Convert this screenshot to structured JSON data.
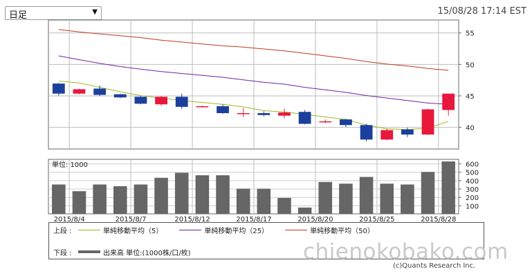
{
  "toolbar": {
    "period_selected": "日足",
    "timestamp": "15/08/28 17:14 EST"
  },
  "chart_data": [
    {
      "type": "candlestick",
      "x_tick_labels": [
        "2015/8/4",
        "2015/8/7",
        "2015/8/12",
        "2015/8/17",
        "2015/8/20",
        "2015/8/25",
        "2015/8/28"
      ],
      "ylim": [
        36.5,
        57
      ],
      "yticks": [
        40,
        45,
        50,
        55
      ],
      "grid": true,
      "colors": {
        "up": "#e8173c",
        "down": "#1b3f9c",
        "ma5": "#9abb1c",
        "ma25": "#6a22a8",
        "ma50": "#c0391a"
      },
      "candles": [
        {
          "date": "2015/8/3",
          "open": 46.9,
          "high": 47.0,
          "low": 45.0,
          "close": 45.3
        },
        {
          "date": "2015/8/4",
          "open": 45.3,
          "high": 46.1,
          "low": 45.2,
          "close": 46.0
        },
        {
          "date": "2015/8/5",
          "open": 46.1,
          "high": 46.6,
          "low": 44.9,
          "close": 45.1
        },
        {
          "date": "2015/8/6",
          "open": 45.2,
          "high": 45.3,
          "low": 44.6,
          "close": 44.7
        },
        {
          "date": "2015/8/7",
          "open": 44.8,
          "high": 44.9,
          "low": 43.6,
          "close": 43.7
        },
        {
          "date": "2015/8/10",
          "open": 43.6,
          "high": 44.9,
          "low": 43.4,
          "close": 44.8
        },
        {
          "date": "2015/8/11",
          "open": 44.8,
          "high": 45.3,
          "low": 42.9,
          "close": 43.2
        },
        {
          "date": "2015/8/12",
          "open": 43.2,
          "high": 43.4,
          "low": 43.1,
          "close": 43.3
        },
        {
          "date": "2015/8/13",
          "open": 43.3,
          "high": 43.6,
          "low": 42.1,
          "close": 42.2
        },
        {
          "date": "2015/8/14",
          "open": 42.2,
          "high": 43.0,
          "low": 41.6,
          "close": 42.2
        },
        {
          "date": "2015/8/17",
          "open": 42.2,
          "high": 42.5,
          "low": 41.7,
          "close": 41.9
        },
        {
          "date": "2015/8/18",
          "open": 41.8,
          "high": 42.9,
          "low": 41.4,
          "close": 42.3
        },
        {
          "date": "2015/8/19",
          "open": 42.4,
          "high": 42.7,
          "low": 40.4,
          "close": 40.5
        },
        {
          "date": "2015/8/20",
          "open": 40.9,
          "high": 41.2,
          "low": 40.6,
          "close": 40.9
        },
        {
          "date": "2015/8/21",
          "open": 41.2,
          "high": 41.3,
          "low": 40.0,
          "close": 40.3
        },
        {
          "date": "2015/8/24",
          "open": 40.3,
          "high": 40.5,
          "low": 37.7,
          "close": 38.0
        },
        {
          "date": "2015/8/25",
          "open": 38.0,
          "high": 39.7,
          "low": 37.9,
          "close": 39.5
        },
        {
          "date": "2015/8/26",
          "open": 39.6,
          "high": 39.9,
          "low": 38.4,
          "close": 38.8
        },
        {
          "date": "2015/8/27",
          "open": 38.8,
          "high": 42.9,
          "low": 38.7,
          "close": 42.8
        },
        {
          "date": "2015/8/28",
          "open": 42.7,
          "high": 45.3,
          "low": 41.8,
          "close": 45.3
        }
      ],
      "series": [
        {
          "name": "単純移動平均（5）",
          "values": [
            47.3,
            47.0,
            46.3,
            45.6,
            45.0,
            44.6,
            44.2,
            43.9,
            43.6,
            43.2,
            42.6,
            42.4,
            42.0,
            41.6,
            41.2,
            40.3,
            39.7,
            39.6,
            39.8,
            40.9
          ]
        },
        {
          "name": "単純移動平均（25）",
          "values": [
            51.3,
            50.7,
            50.1,
            49.6,
            49.2,
            48.8,
            48.5,
            48.2,
            47.9,
            47.5,
            47.1,
            46.8,
            46.3,
            45.9,
            45.5,
            45.0,
            44.6,
            44.2,
            43.8,
            43.6
          ]
        },
        {
          "name": "単純移動平均（50）",
          "values": [
            55.5,
            55.1,
            54.8,
            54.5,
            54.2,
            53.8,
            53.5,
            53.2,
            52.9,
            52.7,
            52.4,
            52.1,
            51.7,
            51.3,
            50.9,
            50.4,
            50.0,
            49.7,
            49.3,
            49.0
          ]
        }
      ]
    },
    {
      "type": "bar",
      "unit_label": "単位: 1000",
      "name": "出来高 単位:(1000株/口/枚)",
      "ylim": [
        0,
        650
      ],
      "yticks": [
        100,
        200,
        300,
        400,
        500,
        600
      ],
      "color": "#666666",
      "values": [
        350,
        270,
        350,
        330,
        350,
        430,
        490,
        460,
        460,
        300,
        300,
        190,
        75,
        380,
        360,
        440,
        360,
        350,
        500,
        625
      ]
    }
  ],
  "legend": {
    "upper_label": "上段 :",
    "lower_label": "下段 :",
    "items": [
      {
        "label": "単純移動平均（5）",
        "color": "#9abb1c"
      },
      {
        "label": "単純移動平均（25）",
        "color": "#6a22a8"
      },
      {
        "label": "単純移動平均（50）",
        "color": "#c0391a"
      }
    ],
    "volume_label": "出来高 単位:(1000株/口/枚)"
  },
  "watermark": "chienokobako.com",
  "copyright": "(c)Quants Research Inc."
}
